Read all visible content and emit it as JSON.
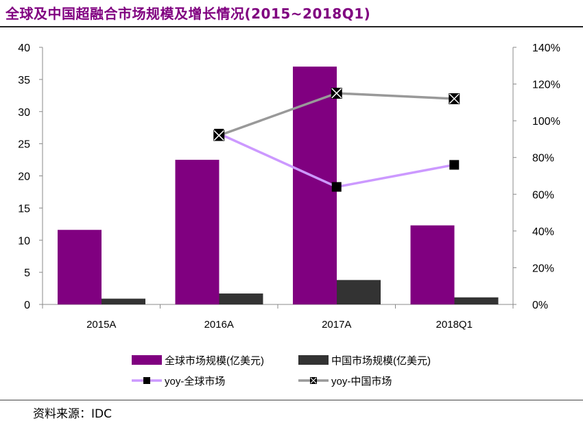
{
  "header": {
    "title": "全球及中国超融合市场规模及增长情况(2015~2018Q1)"
  },
  "footer": {
    "source": "资料来源：IDC"
  },
  "colors": {
    "title": "#800080",
    "global_bar": "#800080",
    "china_bar": "#333333",
    "global_yoy": "#CC99FF",
    "china_yoy": "#999999",
    "marker": "#000000"
  },
  "chart_data": {
    "type": "bar",
    "title": "全球及中国超融合市场规模及增长情况(2015~2018Q1)",
    "categories": [
      "2015A",
      "2016A",
      "2017A",
      "2018Q1"
    ],
    "y_left": {
      "min": 0,
      "max": 40,
      "step": 5,
      "ticks": [
        "0",
        "5",
        "10",
        "15",
        "20",
        "25",
        "30",
        "35",
        "40"
      ]
    },
    "y_right": {
      "min": 0,
      "max": 140,
      "step": 20,
      "ticks": [
        "0%",
        "20%",
        "40%",
        "60%",
        "80%",
        "100%",
        "120%",
        "140%"
      ]
    },
    "series": [
      {
        "name": "全球市场规模(亿美元)",
        "kind": "bar",
        "axis": "left",
        "values": [
          11.6,
          22.5,
          37.0,
          12.3
        ]
      },
      {
        "name": "中国市场规模(亿美元)",
        "kind": "bar",
        "axis": "left",
        "values": [
          0.9,
          1.7,
          3.8,
          1.1
        ]
      },
      {
        "name": "yoy-全球市场",
        "kind": "line",
        "axis": "right",
        "values": [
          null,
          93,
          64,
          76
        ]
      },
      {
        "name": "yoy-中国市场",
        "kind": "line",
        "axis": "right",
        "values": [
          null,
          92,
          115,
          112
        ]
      }
    ],
    "legend_position": "bottom",
    "grid": false
  }
}
